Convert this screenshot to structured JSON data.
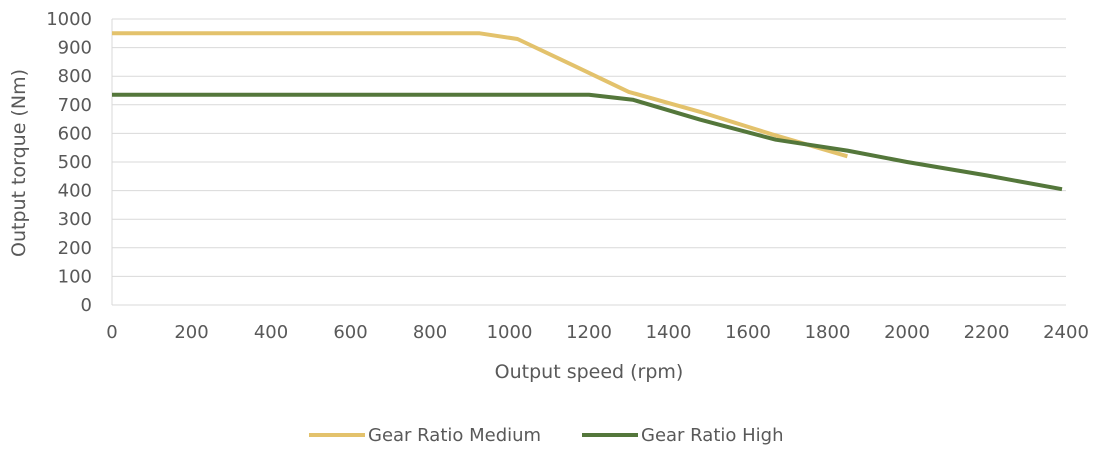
{
  "chart_data": {
    "type": "line",
    "xlabel": "Output speed (rpm)",
    "ylabel": "Output torque (Nm)",
    "xlim": [
      0,
      2400
    ],
    "ylim": [
      0,
      1000
    ],
    "x_ticks": [
      "0",
      "200",
      "400",
      "600",
      "800",
      "1000",
      "1200",
      "1400",
      "1600",
      "1800",
      "2000",
      "2200",
      "2400"
    ],
    "y_ticks": [
      "0",
      "100",
      "200",
      "300",
      "400",
      "500",
      "600",
      "700",
      "800",
      "900",
      "1000"
    ],
    "grid": true,
    "legend_position": "bottom",
    "series": [
      {
        "name": "Gear Ratio Medium",
        "color": "#e3c26c",
        "points": [
          [
            0,
            950
          ],
          [
            925,
            950
          ],
          [
            1020,
            930
          ],
          [
            1160,
            838
          ],
          [
            1300,
            745
          ],
          [
            1480,
            675
          ],
          [
            1660,
            597
          ],
          [
            1850,
            520
          ]
        ]
      },
      {
        "name": "Gear Ratio High",
        "color": "#54773b",
        "points": [
          [
            0,
            735
          ],
          [
            1200,
            735
          ],
          [
            1310,
            718
          ],
          [
            1480,
            648
          ],
          [
            1670,
            578
          ],
          [
            1850,
            540
          ],
          [
            2000,
            500
          ],
          [
            2200,
            453
          ],
          [
            2390,
            405
          ]
        ]
      }
    ]
  }
}
